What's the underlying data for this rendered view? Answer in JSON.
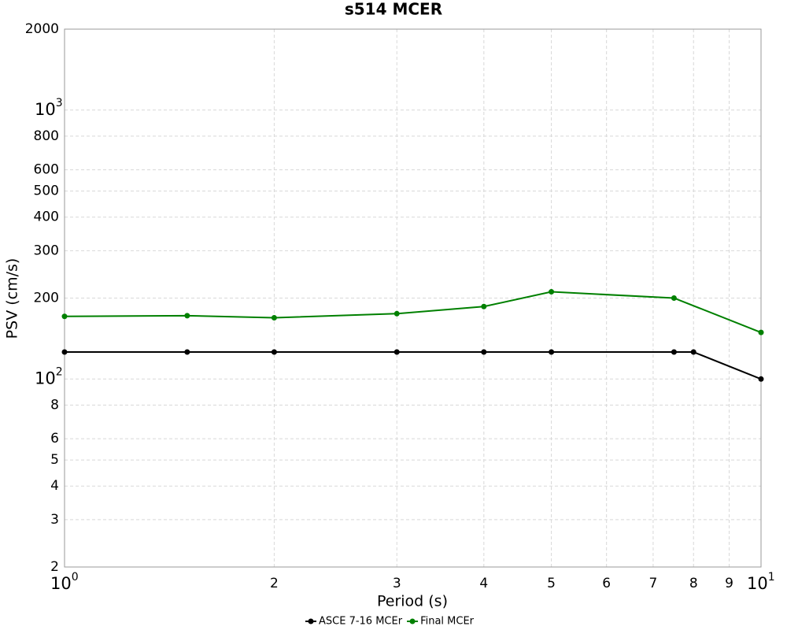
{
  "chart_data": {
    "type": "line",
    "title": "s514 MCER",
    "x_label": "Period (s)",
    "y_label": "PSV (cm/s)",
    "xscale": "log",
    "yscale": "log",
    "grid": true,
    "legend": "bottom",
    "xlim": [
      1,
      10
    ],
    "ylim": [
      20,
      2000
    ],
    "xticks": [
      {
        "value": 1,
        "label": "10",
        "exponent": "0"
      },
      2,
      3,
      4,
      5,
      6,
      7,
      8,
      9,
      {
        "value": 10,
        "label": "10",
        "exponent": "1"
      }
    ],
    "yticks": [
      {
        "value": 20,
        "label": "2"
      },
      {
        "value": 30,
        "label": "3"
      },
      {
        "value": 40,
        "label": "4"
      },
      {
        "value": 50,
        "label": "5"
      },
      {
        "value": 60,
        "label": "6"
      },
      {
        "value": 80,
        "label": "8"
      },
      {
        "value": 100,
        "label": "10",
        "exponent": "2"
      },
      200,
      300,
      400,
      500,
      600,
      800,
      {
        "value": 1000,
        "label": "10",
        "exponent": "3"
      },
      2000
    ],
    "series": [
      {
        "name": "ASCE 7-16 MCEr",
        "color": "#000000",
        "x": [
          1,
          1.5,
          2,
          3,
          4,
          5,
          7.5,
          8,
          10
        ],
        "values": [
          126,
          126,
          126,
          126,
          126,
          126,
          126,
          126,
          100
        ]
      },
      {
        "name": "Final MCEr",
        "color": "#008000",
        "x": [
          1,
          1.5,
          2,
          3,
          4,
          5,
          7.5,
          10
        ],
        "values": [
          171,
          172,
          169,
          175,
          186,
          211,
          200,
          149
        ]
      }
    ]
  }
}
